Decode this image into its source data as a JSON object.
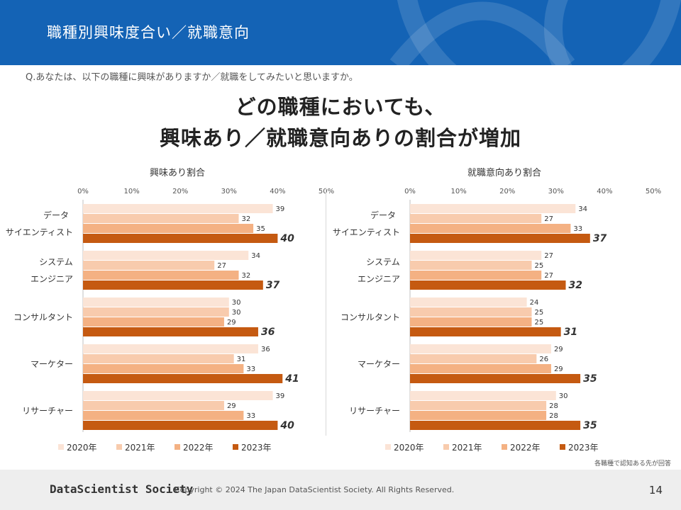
{
  "header": {
    "title": "職種別興味度合い／就職意向"
  },
  "question": "Q.あなたは、以下の職種に興味がありますか／就職をしてみたいと思いますか。",
  "headline": {
    "line1": "どの職種においても、",
    "line2": "興味あり／就職意向ありの割合が増加"
  },
  "note": "各職種で認知ある先が回答",
  "footer": {
    "brand": "DataScientist Society",
    "copyright": "Copyright © 2024  The Japan DataScientist Society. All Rights Reserved.",
    "page_number": "14"
  },
  "colors": {
    "header_bg": "#1463b5",
    "s2020": "#fbe4d6",
    "s2021": "#f8cbad",
    "s2022": "#f4b183",
    "s2023": "#c55a11"
  },
  "chart_data": [
    {
      "type": "bar",
      "orientation": "horizontal",
      "title": "興味あり割合",
      "categories": [
        [
          "データ",
          "サイエンティスト"
        ],
        [
          "システム",
          "エンジニア"
        ],
        [
          "コンサルタント"
        ],
        [
          "マーケター"
        ],
        [
          "リサーチャー"
        ]
      ],
      "series": [
        {
          "name": "2020年",
          "values": [
            39,
            34,
            30,
            36,
            39
          ]
        },
        {
          "name": "2021年",
          "values": [
            32,
            27,
            30,
            31,
            29
          ]
        },
        {
          "name": "2022年",
          "values": [
            35,
            32,
            29,
            33,
            33
          ]
        },
        {
          "name": "2023年",
          "values": [
            40,
            37,
            36,
            41,
            40
          ]
        }
      ],
      "xlim": [
        0,
        50
      ],
      "ticks": [
        "0%",
        "10%",
        "20%",
        "30%",
        "40%",
        "50%"
      ],
      "legend": "bottom"
    },
    {
      "type": "bar",
      "orientation": "horizontal",
      "title": "就職意向あり割合",
      "categories": [
        [
          "データ",
          "サイエンティスト"
        ],
        [
          "システム",
          "エンジニア"
        ],
        [
          "コンサルタント"
        ],
        [
          "マーケター"
        ],
        [
          "リサーチャー"
        ]
      ],
      "series": [
        {
          "name": "2020年",
          "values": [
            34,
            27,
            24,
            29,
            30
          ]
        },
        {
          "name": "2021年",
          "values": [
            27,
            25,
            25,
            26,
            28
          ]
        },
        {
          "name": "2022年",
          "values": [
            33,
            27,
            25,
            29,
            28
          ]
        },
        {
          "name": "2023年",
          "values": [
            37,
            32,
            31,
            35,
            35
          ]
        }
      ],
      "xlim": [
        0,
        50
      ],
      "ticks": [
        "0%",
        "10%",
        "20%",
        "30%",
        "40%",
        "50%"
      ],
      "legend": "bottom"
    }
  ]
}
